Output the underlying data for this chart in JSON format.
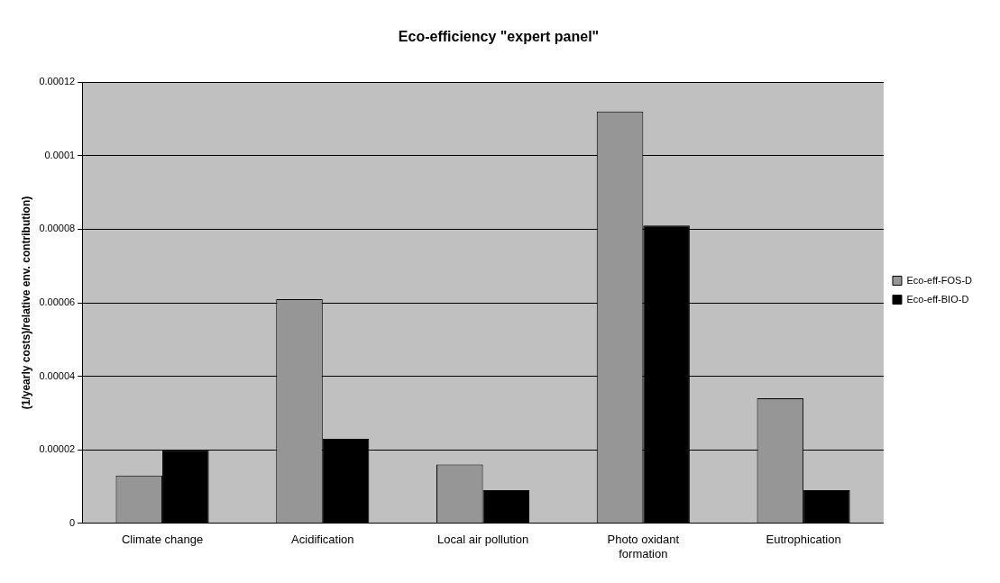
{
  "chart_data": {
    "type": "bar",
    "title": "Eco-efficiency \"expert panel\"",
    "ylabel": "(1/yearly costs)/relative env. contribution)",
    "categories": [
      "Climate change",
      "Acidification",
      "Local air pollution",
      "Photo oxidant formation",
      "Eutrophication"
    ],
    "series": [
      {
        "name": "Eco-eff-FOS-D",
        "color": "#969696",
        "values": [
          1.3e-05,
          6.1e-05,
          1.6e-05,
          0.000112,
          3.4e-05
        ]
      },
      {
        "name": "Eco-eff-BIO-D",
        "color": "#000000",
        "values": [
          2e-05,
          2.3e-05,
          9e-06,
          8.1e-05,
          9e-06
        ]
      }
    ],
    "ylim": [
      0,
      0.00012
    ],
    "yticks": [
      0,
      {
        "value": 2e-05,
        "label": "0.00002"
      },
      {
        "value": 4e-05,
        "label": "0.00004"
      },
      {
        "value": 6e-05,
        "label": "0.00006"
      },
      {
        "value": 8e-05,
        "label": "0.00008"
      },
      0.0001,
      0.00012
    ],
    "grid": "y",
    "legend": "right"
  }
}
